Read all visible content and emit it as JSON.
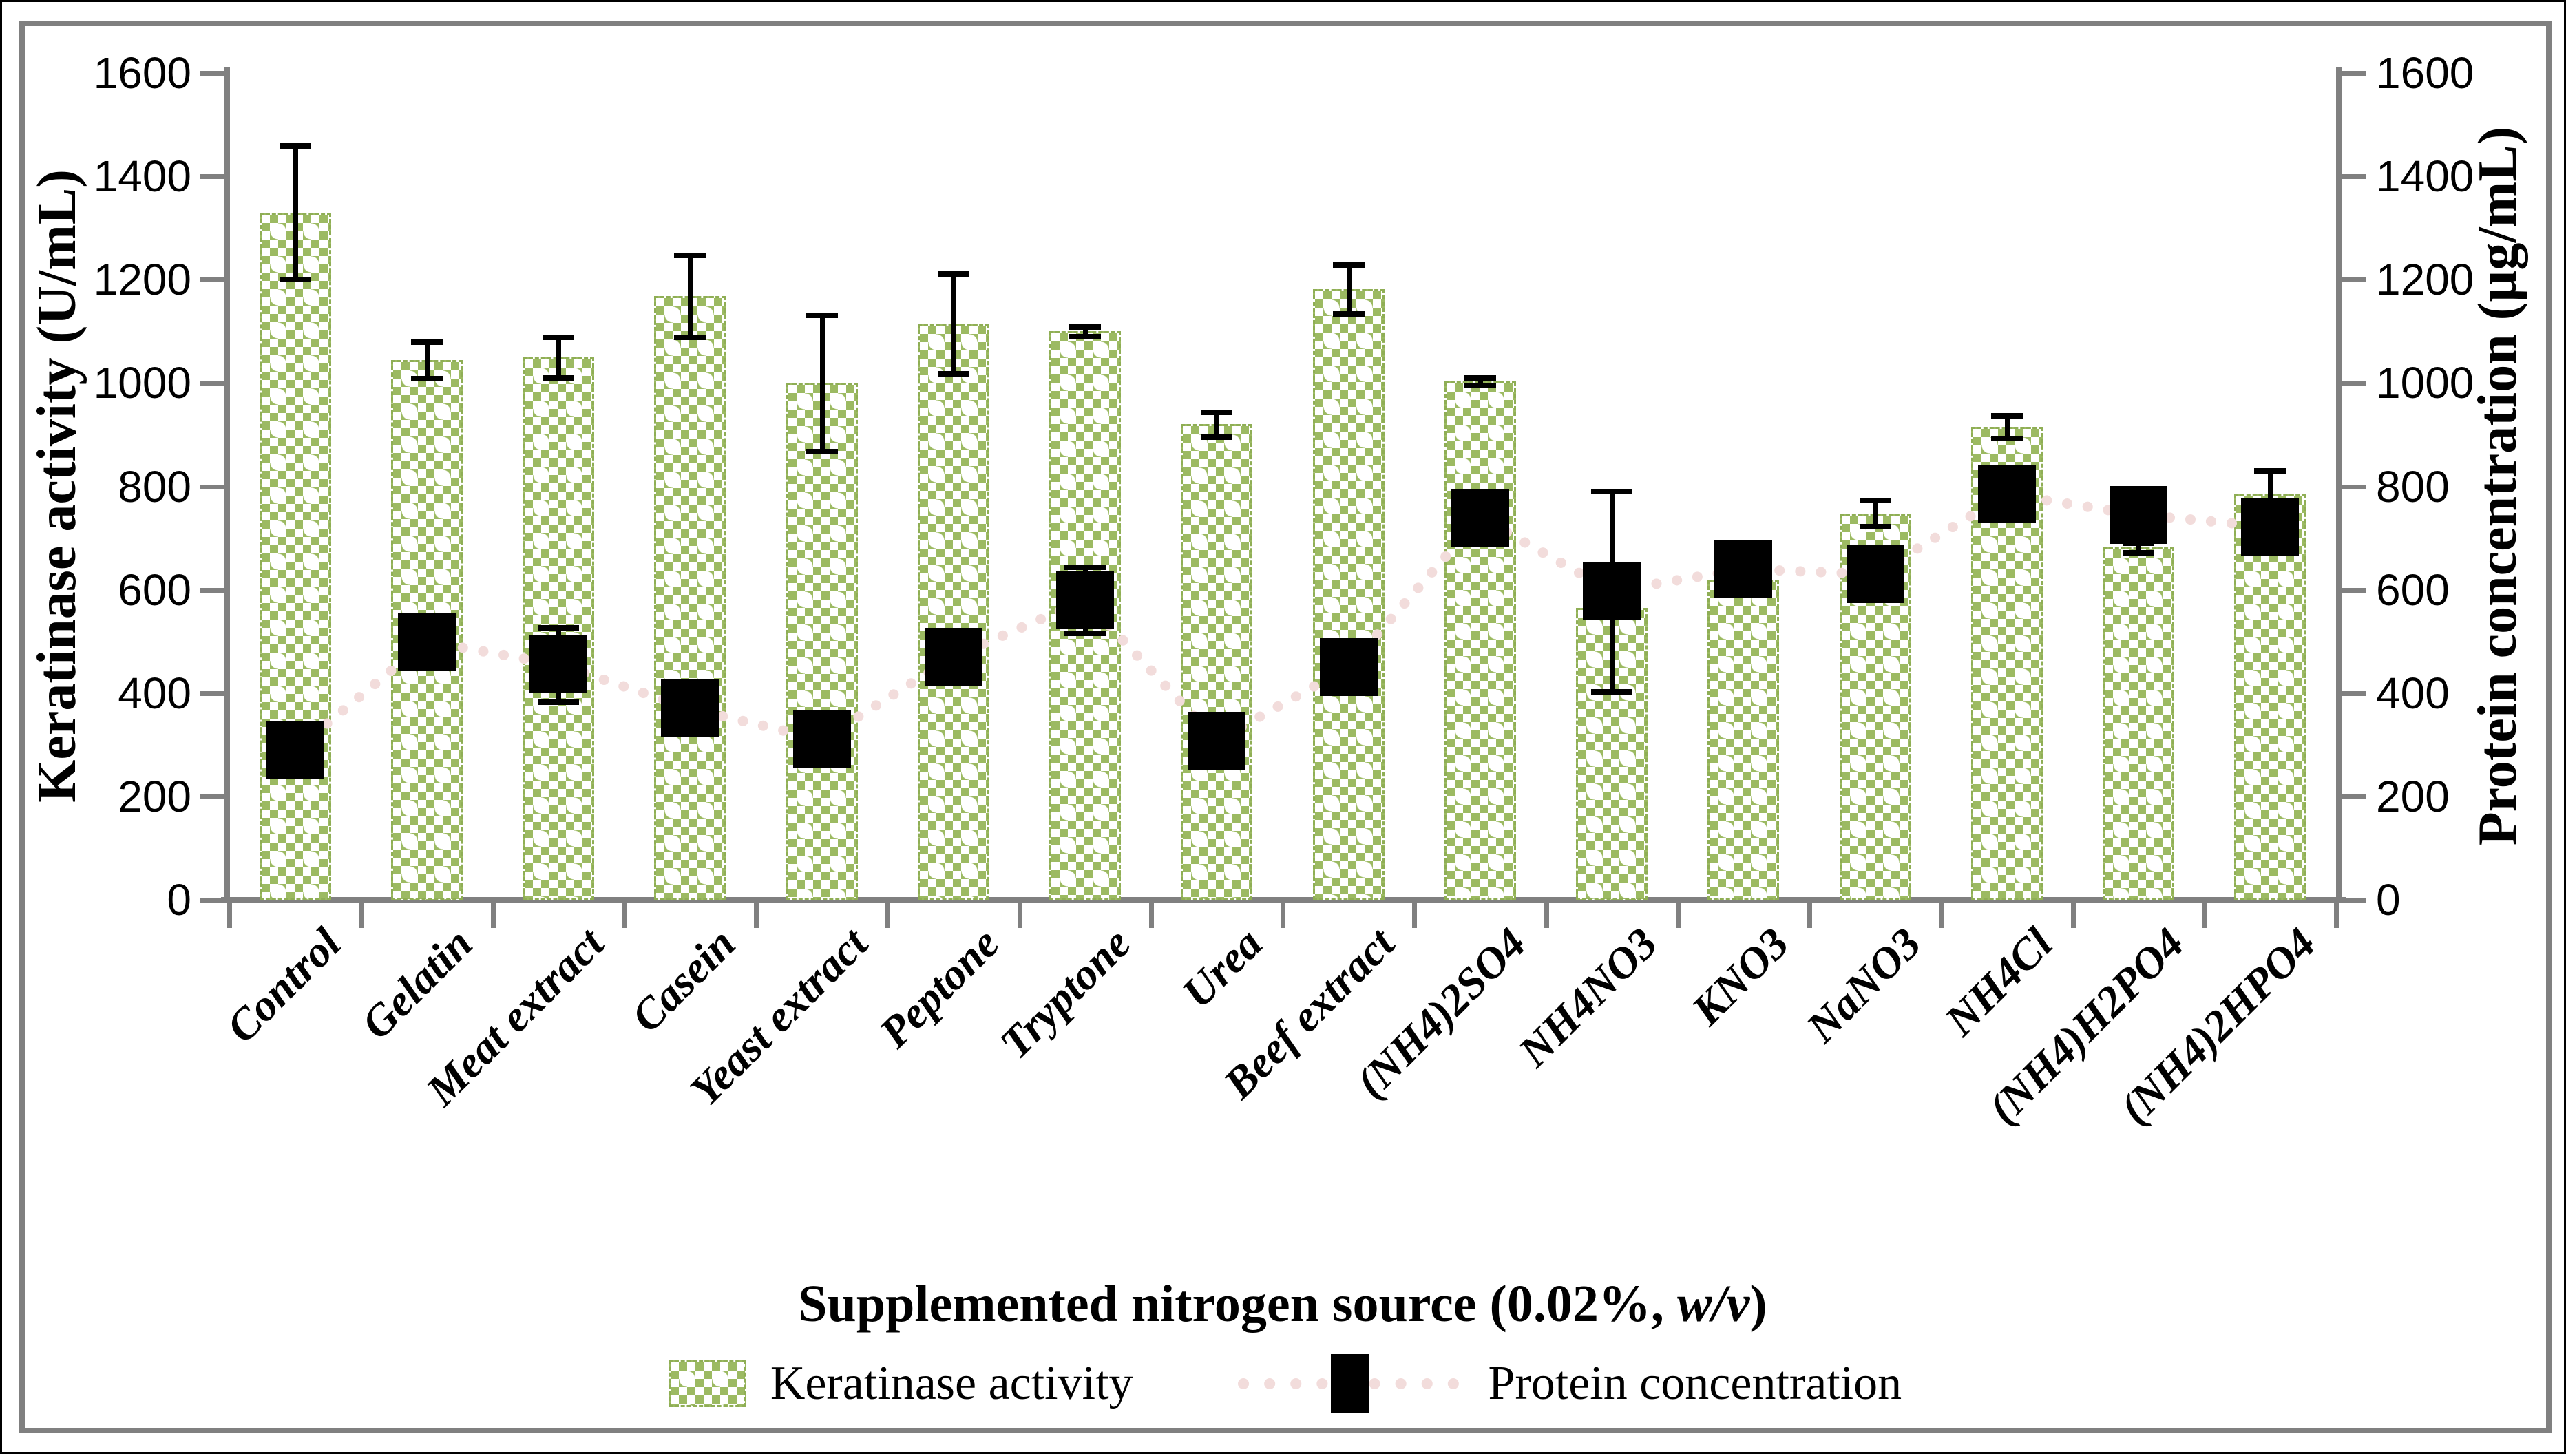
{
  "chart_data": {
    "type": "bar",
    "categories": [
      "Control",
      "Gelatin",
      "Meat extract",
      "Casein",
      "Yeast extract",
      "Peptone",
      "Tryptone",
      "Urea",
      "Beef extract",
      "(NH4)2SO4",
      "NH4NO3",
      "KNO3",
      "NaNO3",
      "NH4Cl",
      "(NH4)H2PO4",
      "(NH4)2HPO4"
    ],
    "series": [
      {
        "name": "Keratinase activity",
        "type": "bar",
        "color": "#9cba62",
        "pattern": "green-white-checker-dots",
        "values": [
          1330,
          1045,
          1050,
          1168,
          1000,
          1115,
          1100,
          920,
          1182,
          1003,
          565,
          620,
          748,
          915,
          682,
          785
        ],
        "errors": [
          130,
          36,
          40,
          80,
          133,
          97,
          10,
          25,
          48,
          8,
          0,
          0,
          26,
          23,
          10,
          46
        ]
      },
      {
        "name": "Protein concentration",
        "type": "line",
        "marker": "black-square",
        "line_color": "#f2dcdb",
        "line_style": "dotted",
        "marker_color": "#000000",
        "values": [
          290,
          500,
          455,
          370,
          310,
          470,
          580,
          308,
          450,
          740,
          597,
          640,
          630,
          785,
          745,
          722
        ],
        "errors": [
          0,
          0,
          72,
          0,
          0,
          45,
          65,
          0,
          0,
          0,
          195,
          0,
          0,
          0,
          0,
          0
        ]
      }
    ],
    "left_axis": {
      "label": "Keratinase activity (U/mL)",
      "min": 0,
      "max": 1600,
      "step": 200,
      "tick_labels": [
        "0",
        "200",
        "400",
        "600",
        "800",
        "1000",
        "1200",
        "1400",
        "1600"
      ]
    },
    "right_axis": {
      "label": "Protein concentration (µg/mL)",
      "min": 0,
      "max": 1600,
      "step": 200,
      "tick_labels": [
        "0",
        "200",
        "400",
        "600",
        "800",
        "1000",
        "1200",
        "1400",
        "1600"
      ]
    },
    "x_axis": {
      "title_prefix": "Supplemented nitrogen source (0.02%, ",
      "title_italic": "w/v",
      "title_suffix": ")"
    },
    "legend": [
      {
        "label": "Keratinase activity",
        "swatch": "green-pattern-square"
      },
      {
        "label": "Protein concentration",
        "swatch": "dotted-line-black-square"
      }
    ],
    "grid": "off",
    "legend_position": "bottom",
    "frame_color": "#808080",
    "axis_color": "#808080"
  }
}
